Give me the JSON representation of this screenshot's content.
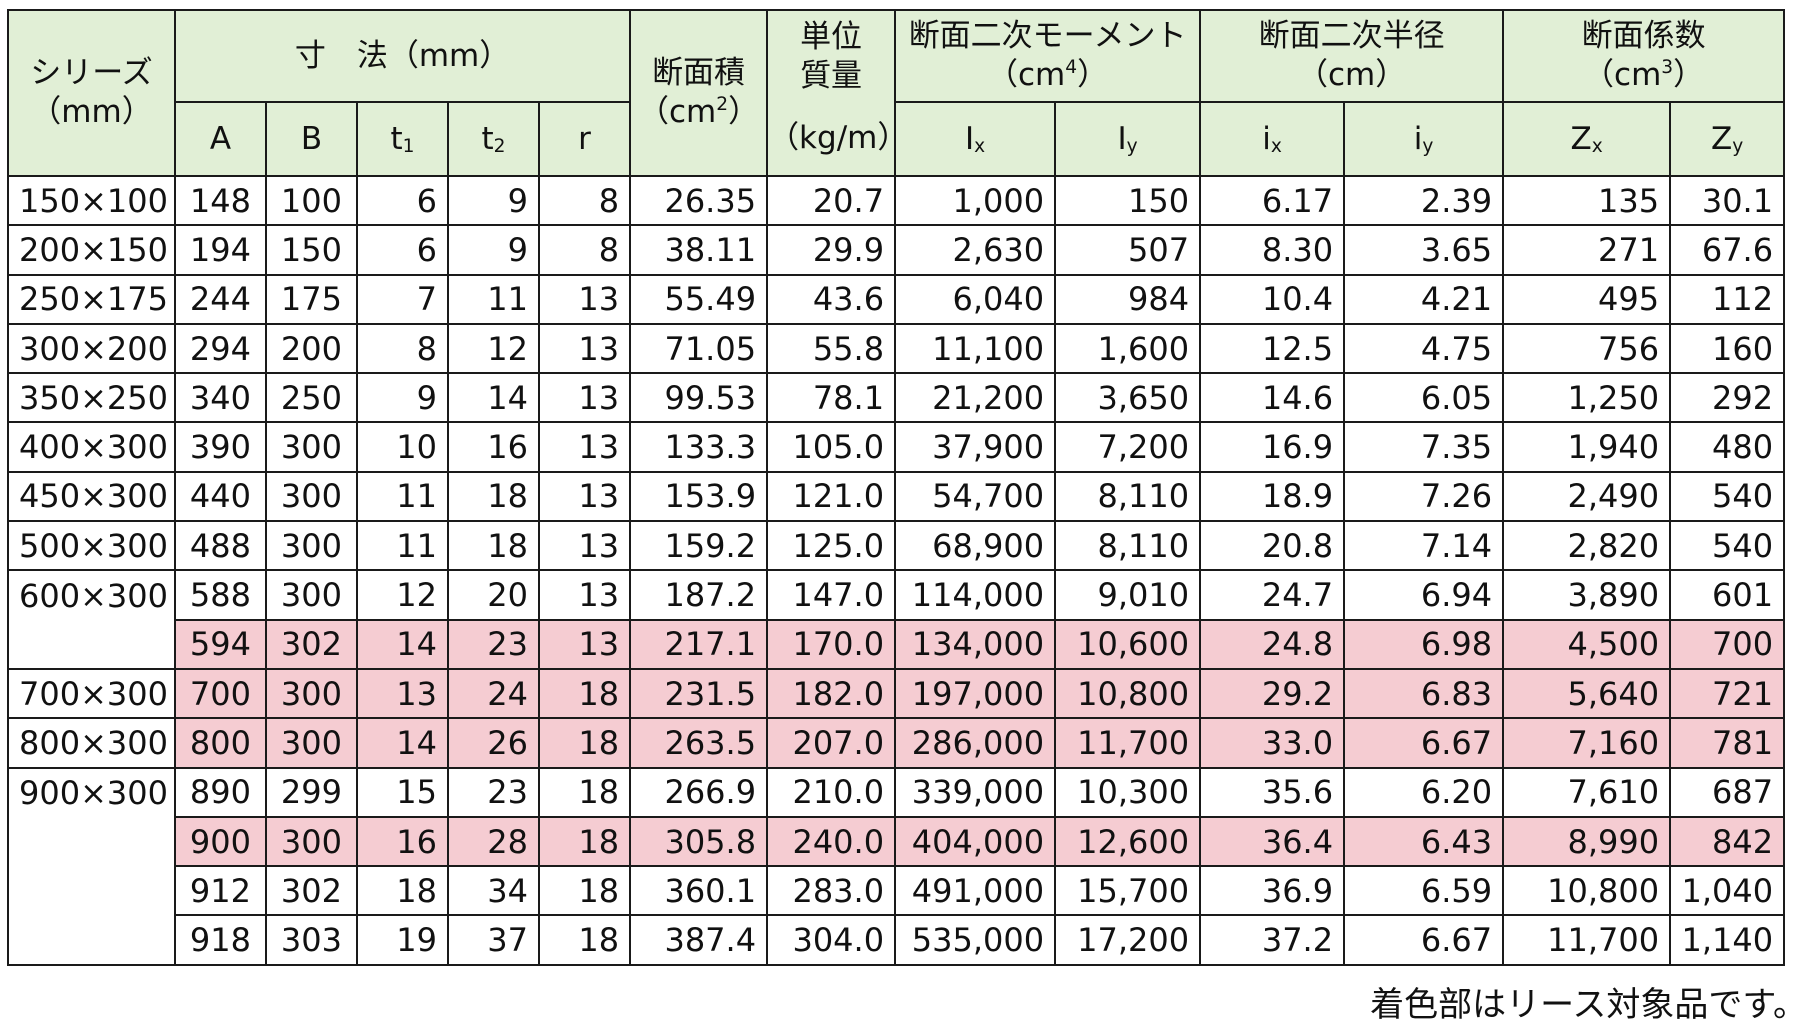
{
  "header": {
    "series": "シリーズ",
    "series_unit": "（mm）",
    "dimensions": "寸　法（mm）",
    "area": "断面積",
    "area_unit": "（cm",
    "area_unit_exp": "2",
    "area_unit_close": "）",
    "weight_line1": "単位",
    "weight_line2": "質量",
    "weight_unit": "（kg/m）",
    "moment": "断面二次モーメント",
    "moment_unit": "（cm",
    "moment_unit_exp": "4",
    "moment_unit_close": "）",
    "radius": "断面二次半径",
    "radius_unit": "（cm）",
    "modulus": "断面係数",
    "modulus_unit": "（cm",
    "modulus_unit_exp": "3",
    "modulus_unit_close": "）",
    "col_A": "A",
    "col_B": "B",
    "col_t1": "t",
    "col_t1_sub": "1",
    "col_t2": "t",
    "col_t2_sub": "2",
    "col_r": "r",
    "col_Ix": "I",
    "col_Ix_sub": "x",
    "col_Iy": "I",
    "col_Iy_sub": "y",
    "col_ix": "i",
    "col_ix_sub": "x",
    "col_iy": "i",
    "col_iy_sub": "y",
    "col_Zx": "Z",
    "col_Zx_sub": "x",
    "col_Zy": "Z",
    "col_Zy_sub": "y"
  },
  "rows": [
    {
      "series": "150×100",
      "A": "148",
      "B": "100",
      "t1": "6",
      "t2": "9",
      "r": "8",
      "area": "26.35",
      "weight": "20.7",
      "Ix": "1,000",
      "Iy": "150",
      "ix": "6.17",
      "iy": "2.39",
      "Zx": "135",
      "Zy": "30.1",
      "lease": false
    },
    {
      "series": "200×150",
      "A": "194",
      "B": "150",
      "t1": "6",
      "t2": "9",
      "r": "8",
      "area": "38.11",
      "weight": "29.9",
      "Ix": "2,630",
      "Iy": "507",
      "ix": "8.30",
      "iy": "3.65",
      "Zx": "271",
      "Zy": "67.6",
      "lease": false
    },
    {
      "series": "250×175",
      "A": "244",
      "B": "175",
      "t1": "7",
      "t2": "11",
      "r": "13",
      "area": "55.49",
      "weight": "43.6",
      "Ix": "6,040",
      "Iy": "984",
      "ix": "10.4",
      "iy": "4.21",
      "Zx": "495",
      "Zy": "112",
      "lease": false
    },
    {
      "series": "300×200",
      "A": "294",
      "B": "200",
      "t1": "8",
      "t2": "12",
      "r": "13",
      "area": "71.05",
      "weight": "55.8",
      "Ix": "11,100",
      "Iy": "1,600",
      "ix": "12.5",
      "iy": "4.75",
      "Zx": "756",
      "Zy": "160",
      "lease": false
    },
    {
      "series": "350×250",
      "A": "340",
      "B": "250",
      "t1": "9",
      "t2": "14",
      "r": "13",
      "area": "99.53",
      "weight": "78.1",
      "Ix": "21,200",
      "Iy": "3,650",
      "ix": "14.6",
      "iy": "6.05",
      "Zx": "1,250",
      "Zy": "292",
      "lease": false
    },
    {
      "series": "400×300",
      "A": "390",
      "B": "300",
      "t1": "10",
      "t2": "16",
      "r": "13",
      "area": "133.3",
      "weight": "105.0",
      "Ix": "37,900",
      "Iy": "7,200",
      "ix": "16.9",
      "iy": "7.35",
      "Zx": "1,940",
      "Zy": "480",
      "lease": false
    },
    {
      "series": "450×300",
      "A": "440",
      "B": "300",
      "t1": "11",
      "t2": "18",
      "r": "13",
      "area": "153.9",
      "weight": "121.0",
      "Ix": "54,700",
      "Iy": "8,110",
      "ix": "18.9",
      "iy": "7.26",
      "Zx": "2,490",
      "Zy": "540",
      "lease": false
    },
    {
      "series": "500×300",
      "A": "488",
      "B": "300",
      "t1": "11",
      "t2": "18",
      "r": "13",
      "area": "159.2",
      "weight": "125.0",
      "Ix": "68,900",
      "Iy": "8,110",
      "ix": "20.8",
      "iy": "7.14",
      "Zx": "2,820",
      "Zy": "540",
      "lease": false
    },
    {
      "series": "600×300",
      "A": "588",
      "B": "300",
      "t1": "12",
      "t2": "20",
      "r": "13",
      "area": "187.2",
      "weight": "147.0",
      "Ix": "114,000",
      "Iy": "9,010",
      "ix": "24.7",
      "iy": "6.94",
      "Zx": "3,890",
      "Zy": "601",
      "lease": false
    },
    {
      "series": "",
      "A": "594",
      "B": "302",
      "t1": "14",
      "t2": "23",
      "r": "13",
      "area": "217.1",
      "weight": "170.0",
      "Ix": "134,000",
      "Iy": "10,600",
      "ix": "24.8",
      "iy": "6.98",
      "Zx": "4,500",
      "Zy": "700",
      "lease": true
    },
    {
      "series": "700×300",
      "A": "700",
      "B": "300",
      "t1": "13",
      "t2": "24",
      "r": "18",
      "area": "231.5",
      "weight": "182.0",
      "Ix": "197,000",
      "Iy": "10,800",
      "ix": "29.2",
      "iy": "6.83",
      "Zx": "5,640",
      "Zy": "721",
      "lease": true
    },
    {
      "series": "800×300",
      "A": "800",
      "B": "300",
      "t1": "14",
      "t2": "26",
      "r": "18",
      "area": "263.5",
      "weight": "207.0",
      "Ix": "286,000",
      "Iy": "11,700",
      "ix": "33.0",
      "iy": "6.67",
      "Zx": "7,160",
      "Zy": "781",
      "lease": true
    },
    {
      "series": "900×300",
      "A": "890",
      "B": "299",
      "t1": "15",
      "t2": "23",
      "r": "18",
      "area": "266.9",
      "weight": "210.0",
      "Ix": "339,000",
      "Iy": "10,300",
      "ix": "35.6",
      "iy": "6.20",
      "Zx": "7,610",
      "Zy": "687",
      "lease": false
    },
    {
      "series": "",
      "A": "900",
      "B": "300",
      "t1": "16",
      "t2": "28",
      "r": "18",
      "area": "305.8",
      "weight": "240.0",
      "Ix": "404,000",
      "Iy": "12,600",
      "ix": "36.4",
      "iy": "6.43",
      "Zx": "8,990",
      "Zy": "842",
      "lease": true
    },
    {
      "series": "",
      "A": "912",
      "B": "302",
      "t1": "18",
      "t2": "34",
      "r": "18",
      "area": "360.1",
      "weight": "283.0",
      "Ix": "491,000",
      "Iy": "15,700",
      "ix": "36.9",
      "iy": "6.59",
      "Zx": "10,800",
      "Zy": "1,040",
      "lease": false
    },
    {
      "series": "",
      "A": "918",
      "B": "303",
      "t1": "19",
      "t2": "37",
      "r": "18",
      "area": "387.4",
      "weight": "304.0",
      "Ix": "535,000",
      "Iy": "17,200",
      "ix": "37.2",
      "iy": "6.67",
      "Zx": "11,700",
      "Zy": "1,140",
      "lease": false
    }
  ],
  "footnote": "着色部はリース対象品です。",
  "colors": {
    "header_bg": "#e1efd6",
    "lease_bg": "#f5ccd2",
    "border": "#1a1a1a"
  }
}
